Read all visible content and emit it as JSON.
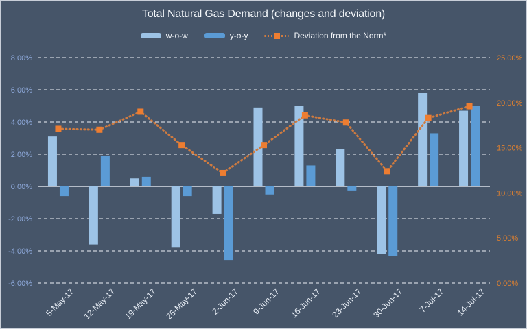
{
  "chart_data": {
    "type": "combo-bar-line",
    "title": "Total Natural Gas Demand (changes and deviation)",
    "categories": [
      "5-May-17",
      "12-May-17",
      "19-May-17",
      "26-May-17",
      "2-Jun-17",
      "9-Jun-17",
      "16-Jun-17",
      "23-Jun-17",
      "30-Jun-17",
      "7-Jul-17",
      "14-Jul-17"
    ],
    "series": [
      {
        "name": "w-o-w",
        "type": "bar",
        "axis": "left",
        "color": "#9DC3E6",
        "values": [
          3.1,
          -3.6,
          0.5,
          -3.8,
          -1.7,
          4.9,
          5.0,
          2.3,
          -4.2,
          5.8,
          4.7
        ]
      },
      {
        "name": "y-o-y",
        "type": "bar",
        "axis": "left",
        "color": "#5B9BD5",
        "values": [
          -0.6,
          1.9,
          0.6,
          -0.6,
          -4.6,
          -0.5,
          1.3,
          -0.25,
          -4.3,
          3.3,
          5.0
        ]
      },
      {
        "name": "Deviation from the Norm*",
        "type": "line",
        "axis": "right",
        "style": "dotted",
        "marker": "square",
        "color": "#ED7D31",
        "line_color": "#CF7B40",
        "values": [
          17.1,
          17.0,
          19.0,
          15.3,
          12.2,
          15.3,
          18.6,
          17.8,
          12.4,
          18.3,
          19.6
        ]
      }
    ],
    "left_axis": {
      "max": 8,
      "min": -6,
      "step": 2,
      "color": "#8FAADC",
      "labels": [
        "8.00%",
        "6.00%",
        "4.00%",
        "2.00%",
        "0.00%",
        "-2.00%",
        "-4.00%",
        "-6.00%"
      ]
    },
    "right_axis": {
      "max": 25,
      "min": 0,
      "step": 5,
      "color": "#E2812E",
      "labels": [
        "25.00%",
        "20.00%",
        "15.00%",
        "10.00%",
        "5.00%",
        "0.00%"
      ]
    },
    "grid": true,
    "legend_position": "top",
    "theme": {
      "background": "#465569",
      "border": "#C8CED8",
      "gridline": "#EDF1F7",
      "zero_line": "#D9DEE7",
      "x_label_color": "#E7EDF5",
      "title_color": "#F4F7FA",
      "legend_text_color": "#F2F5F9"
    }
  }
}
